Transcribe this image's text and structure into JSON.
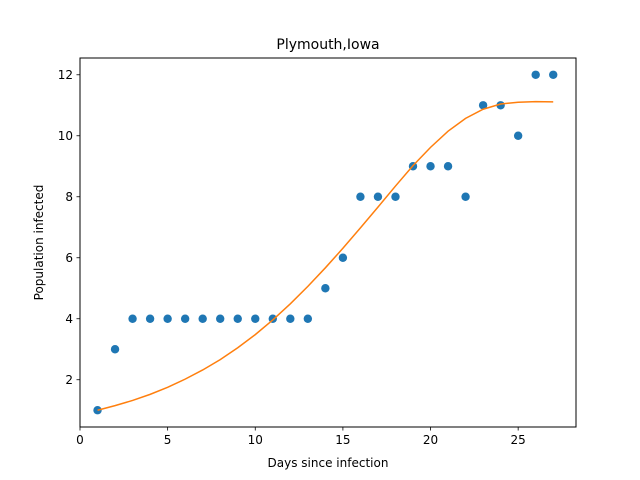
{
  "chart_data": {
    "type": "scatter",
    "title": "Plymouth,Iowa",
    "xlabel": "Days since infection",
    "ylabel": "Population infected",
    "xlim": [
      0,
      28.3
    ],
    "ylim": [
      0.45,
      12.55
    ],
    "xticks": [
      0,
      5,
      10,
      15,
      20,
      25
    ],
    "yticks": [
      2,
      4,
      6,
      8,
      10,
      12
    ],
    "grid": false,
    "legend": "none",
    "series": [
      {
        "kind": "scatter",
        "color": "#1f77b4",
        "x": [
          1,
          2,
          3,
          4,
          5,
          6,
          7,
          8,
          9,
          10,
          11,
          12,
          13,
          14,
          15,
          16,
          17,
          18,
          19,
          20,
          21,
          22,
          23,
          24,
          25,
          26,
          27
        ],
        "y": [
          1,
          3,
          4,
          4,
          4,
          4,
          4,
          4,
          4,
          4,
          4,
          4,
          4,
          5,
          6,
          8,
          8,
          8,
          9,
          9,
          9,
          8,
          11,
          11,
          10,
          12,
          12
        ]
      },
      {
        "kind": "line",
        "color": "#ff7f0e",
        "x": [
          1,
          2,
          3,
          4,
          5,
          6,
          7,
          8,
          9,
          10,
          11,
          12,
          13,
          14,
          15,
          16,
          17,
          18,
          19,
          20,
          21,
          22,
          23,
          24,
          25,
          26,
          27
        ],
        "y": [
          1.0,
          1.15,
          1.32,
          1.52,
          1.75,
          2.02,
          2.32,
          2.66,
          3.05,
          3.48,
          3.96,
          4.49,
          5.06,
          5.67,
          6.31,
          6.98,
          7.66,
          8.35,
          9.02,
          9.62,
          10.15,
          10.57,
          10.87,
          11.04,
          11.1,
          11.12,
          11.11
        ]
      }
    ]
  }
}
